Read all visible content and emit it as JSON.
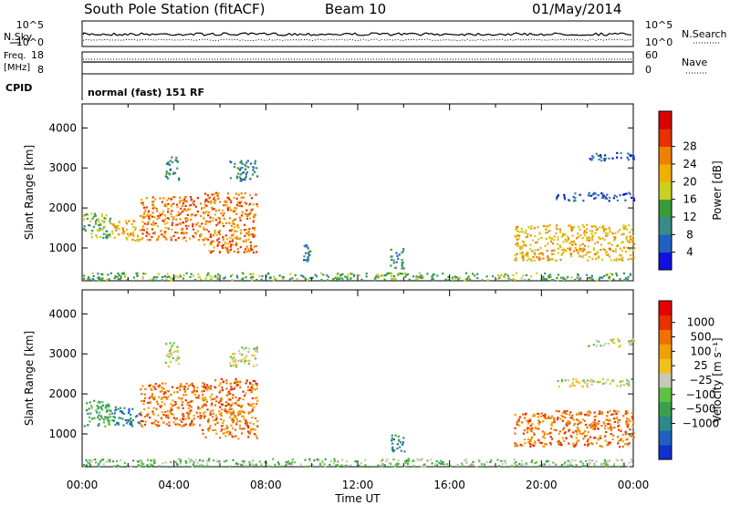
{
  "header": {
    "station": "South Pole Station (fitACF)",
    "beam": "Beam 10",
    "date": "01/May/2014"
  },
  "top_panels": {
    "nsky_label": "N.Sky",
    "nsearch_label": "N.Search",
    "noise_ticks": [
      "10^5",
      "10^0"
    ],
    "freq_label_1": "Freq.",
    "freq_label_2": "[MHz]",
    "freq_ticks": [
      "18",
      "8"
    ],
    "nave_label": "Nave",
    "nave_ticks": [
      "60",
      "0"
    ],
    "cpid_label": "CPID",
    "cpid_text": "normal (fast) 151 RF"
  },
  "chart_data": [
    {
      "type": "heatmap",
      "name": "power",
      "ylabel": "Slant Range [km]",
      "xlabel": "Time UT",
      "ylim": [
        180,
        4600
      ],
      "yticks": [
        "1000",
        "2000",
        "3000",
        "4000"
      ],
      "colorbar": {
        "label": "Power [dB]",
        "ticks": [
          "4",
          "8",
          "12",
          "16",
          "20",
          "24",
          "28"
        ],
        "colors": [
          "#1010e0",
          "#2060c0",
          "#3a8a8a",
          "#3a9a3a",
          "#c8d020",
          "#f0b000",
          "#f08000",
          "#e83000",
          "#d80000"
        ]
      },
      "regions": [
        {
          "t": [
            0.0,
            1.2
          ],
          "range": [
            1200,
            1900
          ],
          "level": 3
        },
        {
          "t": [
            1.2,
            2.5
          ],
          "range": [
            1200,
            1700
          ],
          "level": 5
        },
        {
          "t": [
            2.5,
            5.2
          ],
          "range": [
            1200,
            2300
          ],
          "level": 6
        },
        {
          "t": [
            3.6,
            4.2
          ],
          "range": [
            2700,
            3300
          ],
          "level": 2
        },
        {
          "t": [
            5.2,
            7.6
          ],
          "range": [
            900,
            2400
          ],
          "level": 6
        },
        {
          "t": [
            6.4,
            7.6
          ],
          "range": [
            2700,
            3200
          ],
          "level": 2
        },
        {
          "t": [
            9.6,
            9.9
          ],
          "range": [
            600,
            1100
          ],
          "level": 2
        },
        {
          "t": [
            13.4,
            14.0
          ],
          "range": [
            500,
            1000
          ],
          "level": 2
        },
        {
          "t": [
            18.8,
            24.0
          ],
          "range": [
            700,
            1600
          ],
          "level": 5
        },
        {
          "t": [
            20.6,
            24.0
          ],
          "range": [
            2200,
            2400
          ],
          "level": 1
        },
        {
          "t": [
            22.0,
            24.0
          ],
          "range": [
            3200,
            3400
          ],
          "level": 1
        },
        {
          "t": [
            0.0,
            24.0
          ],
          "range": [
            200,
            400
          ],
          "level": 3
        }
      ]
    },
    {
      "type": "heatmap",
      "name": "velocity",
      "ylabel": "Slant Range [km]",
      "xlabel": "Time UT",
      "ylim": [
        180,
        4600
      ],
      "yticks": [
        "1000",
        "2000",
        "3000",
        "4000"
      ],
      "xticks": [
        "00:00",
        "04:00",
        "08:00",
        "12:00",
        "16:00",
        "20:00",
        "00:00"
      ],
      "colorbar": {
        "label": "Velocity [m s⁻¹]",
        "ticks": [
          "1000",
          "500",
          "100",
          "25",
          "−25",
          "−100",
          "−500",
          "−1000"
        ],
        "colors": [
          "#1030d0",
          "#2060c0",
          "#2a8a8a",
          "#3aa050",
          "#60c040",
          "#c8c8b8",
          "#f0c020",
          "#f0a000",
          "#f07000",
          "#e83000",
          "#e80000"
        ]
      },
      "regions": [
        {
          "t": [
            0.0,
            1.2
          ],
          "range": [
            1200,
            1900
          ],
          "level": 3
        },
        {
          "t": [
            1.2,
            2.5
          ],
          "range": [
            1200,
            1700
          ],
          "level": 2
        },
        {
          "t": [
            2.5,
            5.2
          ],
          "range": [
            1200,
            2300
          ],
          "level": 8
        },
        {
          "t": [
            3.6,
            4.2
          ],
          "range": [
            2700,
            3300
          ],
          "level": 5
        },
        {
          "t": [
            5.2,
            7.6
          ],
          "range": [
            900,
            2400
          ],
          "level": 8
        },
        {
          "t": [
            6.4,
            7.6
          ],
          "range": [
            2700,
            3200
          ],
          "level": 5
        },
        {
          "t": [
            13.4,
            14.0
          ],
          "range": [
            500,
            1000
          ],
          "level": 2
        },
        {
          "t": [
            18.8,
            24.0
          ],
          "range": [
            700,
            1600
          ],
          "level": 8
        },
        {
          "t": [
            20.6,
            24.0
          ],
          "range": [
            2200,
            2400
          ],
          "level": 5
        },
        {
          "t": [
            22.0,
            24.0
          ],
          "range": [
            3200,
            3400
          ],
          "level": 5
        },
        {
          "t": [
            0.0,
            24.0
          ],
          "range": [
            200,
            400
          ],
          "level": 4
        }
      ]
    }
  ]
}
